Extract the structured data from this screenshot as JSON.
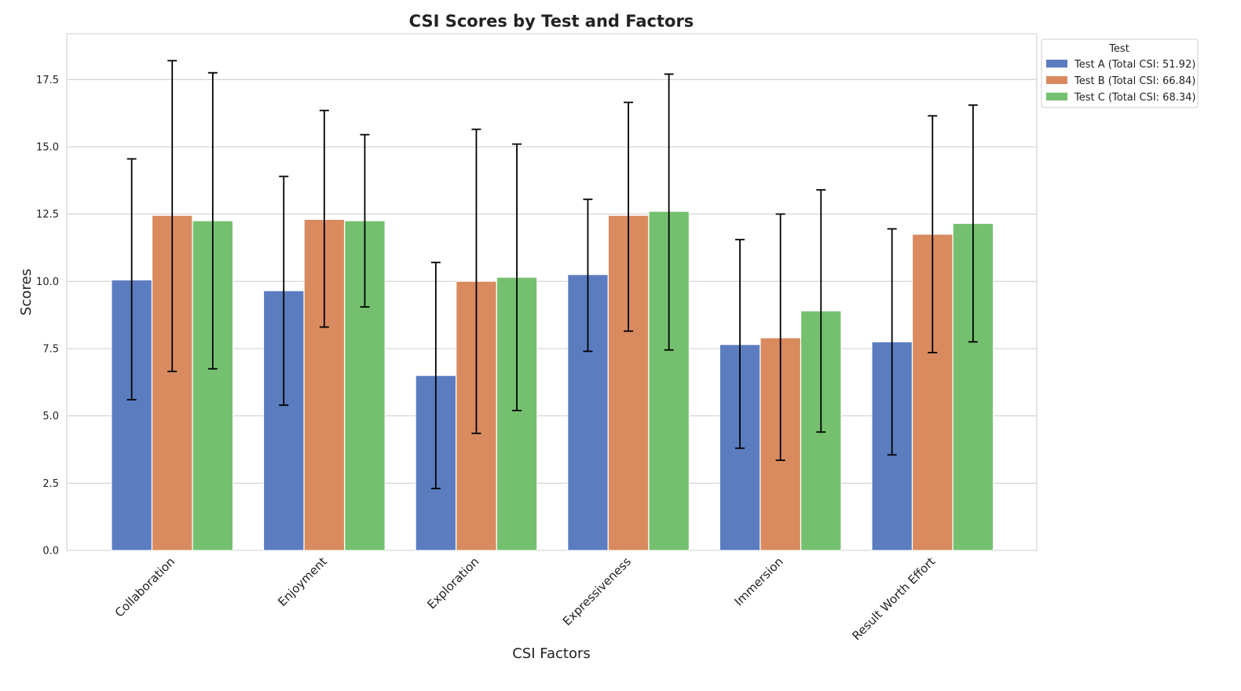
{
  "chart_data": {
    "type": "bar",
    "title": "CSI Scores by Test and Factors",
    "xlabel": "CSI Factors",
    "ylabel": "Scores",
    "ylim": [
      0,
      19.2
    ],
    "yticks": [
      "0.0",
      "2.5",
      "5.0",
      "7.5",
      "10.0",
      "12.5",
      "15.0",
      "17.5"
    ],
    "grid": "horizontal",
    "legend": {
      "title": "Test",
      "placement": "outside-top-right"
    },
    "categories": [
      "Collaboration",
      "Enjoyment",
      "Exploration",
      "Expressiveness",
      "Immersion",
      "Result Worth Effort"
    ],
    "series": [
      {
        "name": "Test A (Total CSI: 51.92)",
        "color": "#5b7dc0",
        "values": [
          10.05,
          9.65,
          6.5,
          10.25,
          7.65,
          7.75
        ],
        "err_low": [
          5.6,
          5.4,
          2.3,
          7.4,
          3.8,
          3.55
        ],
        "err_high": [
          14.55,
          13.9,
          10.7,
          13.05,
          11.55,
          11.95
        ]
      },
      {
        "name": "Test B (Total CSI: 66.84)",
        "color": "#d98b5f",
        "values": [
          12.45,
          12.3,
          10.0,
          12.45,
          7.9,
          11.75
        ],
        "err_low": [
          6.65,
          8.3,
          4.35,
          8.15,
          3.35,
          7.35
        ],
        "err_high": [
          18.2,
          16.35,
          15.65,
          16.65,
          12.5,
          16.15
        ]
      },
      {
        "name": "Test C (Total CSI: 68.34)",
        "color": "#75c06f",
        "values": [
          12.25,
          12.25,
          10.15,
          12.6,
          8.9,
          12.15
        ],
        "err_low": [
          6.75,
          9.05,
          5.2,
          7.45,
          4.4,
          7.75
        ],
        "err_high": [
          17.75,
          15.45,
          15.1,
          17.7,
          13.4,
          16.55
        ]
      }
    ]
  }
}
